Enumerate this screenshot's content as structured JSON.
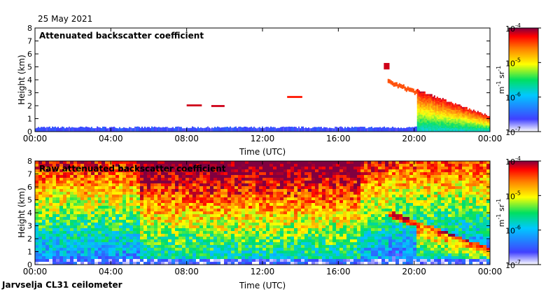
{
  "date": "25 May 2021",
  "instrument": "Jarvselja CL31 ceilometer",
  "colors": {
    "colormap": [
      "#ffffff",
      "#4040ff",
      "#00c8ff",
      "#00e060",
      "#ffff00",
      "#ff8000",
      "#ff0000",
      "#800040"
    ]
  },
  "chart_data": [
    {
      "type": "heatmap",
      "title": "Attenuated backscatter coefficient",
      "xlabel": "Time (UTC)",
      "ylabel": "Height (km)",
      "xticks": [
        "00:00",
        "04:00",
        "08:00",
        "12:00",
        "16:00",
        "20:00",
        "00:00"
      ],
      "yticks": [
        "0",
        "1",
        "2",
        "3",
        "4",
        "5",
        "6",
        "7",
        "8"
      ],
      "xlim_hours": [
        0,
        24
      ],
      "ylim_km": [
        0,
        8
      ],
      "colorbar": {
        "ticks": [
          "10",
          "10",
          "10",
          "10"
        ],
        "exponents": [
          "-7",
          "-6",
          "-5",
          "-4"
        ],
        "label": "m",
        "label_parts": [
          "m",
          "-1",
          " sr",
          "-1"
        ]
      },
      "features": [
        {
          "name": "surface layer",
          "t0": 0,
          "t1": 20.3,
          "h0": 0,
          "h1": 0.35,
          "level": 0.12
        },
        {
          "name": "cloud 08h",
          "t0": 8.0,
          "t1": 8.8,
          "h0": 1.95,
          "h1": 2.1,
          "level": 0.95
        },
        {
          "name": "cloud 09h",
          "t0": 9.3,
          "t1": 10.0,
          "h0": 1.9,
          "h1": 2.05,
          "level": 0.95
        },
        {
          "name": "cloud 13h",
          "t0": 13.3,
          "t1": 14.1,
          "h0": 2.6,
          "h1": 2.75,
          "level": 0.9
        },
        {
          "name": "cloud 18h",
          "t0": 18.4,
          "t1": 18.7,
          "h0": 4.8,
          "h1": 5.3,
          "level": 0.95
        },
        {
          "name": "descending layer",
          "t0": 18.6,
          "t1": 24,
          "h0": 0.8,
          "h1": 4.0,
          "level": 0.7
        }
      ]
    },
    {
      "type": "heatmap",
      "title": "Raw attenuated backscatter coefficient",
      "xlabel": "Time (UTC)",
      "ylabel": "Height (km)",
      "xticks": [
        "00:00",
        "04:00",
        "08:00",
        "12:00",
        "16:00",
        "20:00",
        "00:00"
      ],
      "yticks": [
        "0",
        "1",
        "2",
        "3",
        "4",
        "5",
        "6",
        "7",
        "8"
      ],
      "xlim_hours": [
        0,
        24
      ],
      "ylim_km": [
        0,
        8
      ],
      "colorbar": {
        "ticks": [
          "10",
          "10",
          "10",
          "10"
        ],
        "exponents": [
          "-7",
          "-6",
          "-5",
          "-4"
        ],
        "label_parts": [
          "m",
          "-1",
          " sr",
          "-1"
        ]
      }
    }
  ]
}
